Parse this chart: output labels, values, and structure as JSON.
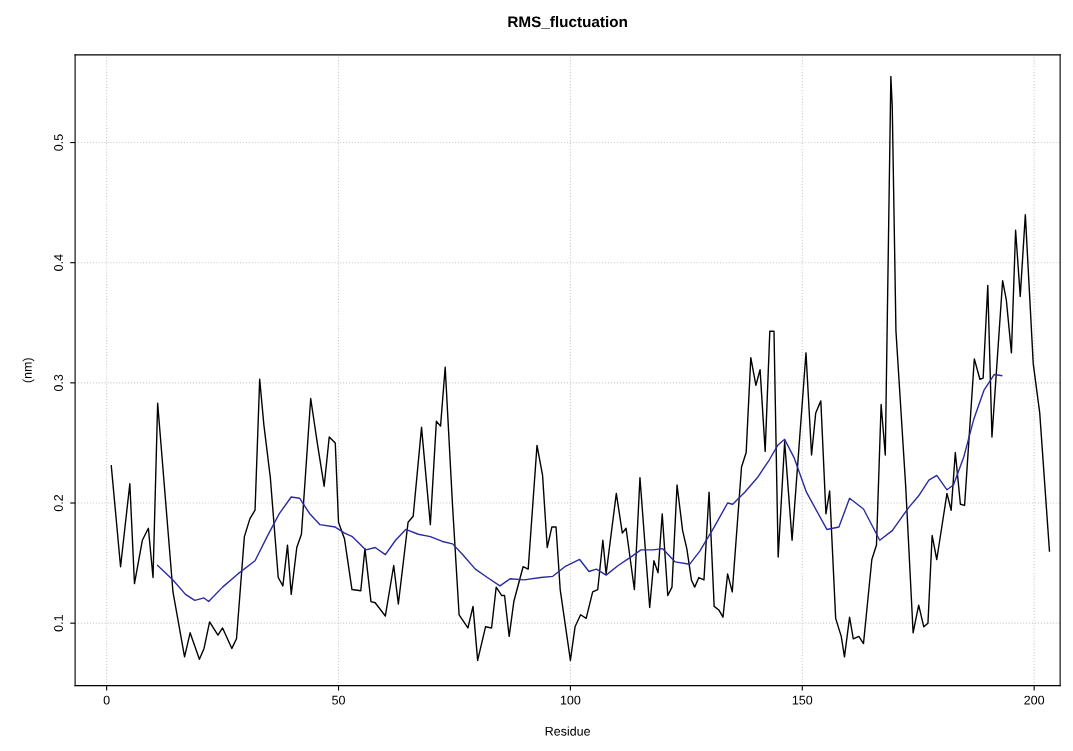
{
  "chart_data": {
    "type": "line",
    "title": "RMS_fluctuation",
    "xlabel": "Residue",
    "ylabel": "(nm)",
    "xlim": [
      -6.8,
      205.6
    ],
    "ylim": [
      0.048,
      0.573
    ],
    "xticks": [
      0,
      50,
      100,
      150,
      200
    ],
    "yticks": [
      0.1,
      0.2,
      0.3,
      0.4,
      0.5
    ],
    "grid": true,
    "line_style": "solid",
    "series": [
      {
        "color": "#000000",
        "x": [
          1,
          3,
          5,
          6,
          7.7,
          9,
          10,
          11,
          14.3,
          16.8,
          18,
          20,
          21,
          22.2,
          24,
          25,
          27,
          28,
          29.7,
          30.9,
          32,
          33,
          33.9,
          35.3,
          37,
          38,
          39,
          39.8,
          41,
          42,
          44,
          45.5,
          46.9,
          48,
          49.3,
          50,
          51.3,
          52.9,
          54.8,
          55.7,
          57,
          57.9,
          60.1,
          61.9,
          62.9,
          65,
          66.1,
          67.9,
          69.8,
          71.1,
          72,
          73,
          74.6,
          76,
          77.9,
          79,
          80,
          81.7,
          83,
          84,
          85.2,
          85.8,
          86.8,
          87.8,
          89.8,
          90.9,
          92.8,
          94,
          95,
          96,
          96.9,
          97.8,
          100,
          101,
          102.2,
          103.4,
          104.8,
          105.9,
          107,
          107.7,
          109.9,
          111.2,
          112,
          113.8,
          115,
          117.1,
          118,
          118.9,
          119.8,
          121,
          121.9,
          123,
          124.2,
          125.1,
          126.1,
          126.8,
          127.7,
          128.8,
          129.9,
          131,
          132,
          132.9,
          133.9,
          134.9,
          136.9,
          137.9,
          138.9,
          140,
          140.9,
          142,
          143,
          143.9,
          144.8,
          146.2,
          147.8,
          150.8,
          152,
          152.9,
          154,
          155.1,
          155.9,
          157.2,
          158.4,
          159.1,
          160.2,
          161,
          162.2,
          163.2,
          165,
          166,
          167,
          167.9,
          169.1,
          169.4,
          170.2,
          172.3,
          173.9,
          175.1,
          176.2,
          177.1,
          178,
          179,
          181.2,
          182.1,
          183,
          184.1,
          185,
          187.1,
          188.3,
          189,
          190,
          190.9,
          193.2,
          194,
          195.1,
          196,
          197,
          198.1,
          199.8,
          201.2,
          203.3
        ],
        "values": [
          0.231,
          0.147,
          0.216,
          0.133,
          0.169,
          0.179,
          0.138,
          0.283,
          0.126,
          0.072,
          0.092,
          0.07,
          0.079,
          0.101,
          0.09,
          0.096,
          0.079,
          0.087,
          0.172,
          0.187,
          0.194,
          0.303,
          0.265,
          0.221,
          0.138,
          0.131,
          0.165,
          0.124,
          0.163,
          0.174,
          0.287,
          0.248,
          0.214,
          0.255,
          0.25,
          0.184,
          0.17,
          0.128,
          0.127,
          0.162,
          0.118,
          0.117,
          0.106,
          0.148,
          0.116,
          0.184,
          0.189,
          0.263,
          0.182,
          0.268,
          0.264,
          0.313,
          0.197,
          0.107,
          0.096,
          0.114,
          0.069,
          0.097,
          0.096,
          0.13,
          0.123,
          0.123,
          0.089,
          0.118,
          0.147,
          0.145,
          0.248,
          0.223,
          0.163,
          0.18,
          0.18,
          0.128,
          0.069,
          0.097,
          0.107,
          0.104,
          0.126,
          0.128,
          0.169,
          0.141,
          0.208,
          0.175,
          0.179,
          0.128,
          0.221,
          0.113,
          0.152,
          0.142,
          0.191,
          0.123,
          0.13,
          0.215,
          0.177,
          0.162,
          0.136,
          0.13,
          0.138,
          0.136,
          0.209,
          0.114,
          0.111,
          0.105,
          0.141,
          0.126,
          0.23,
          0.242,
          0.321,
          0.298,
          0.311,
          0.243,
          0.343,
          0.343,
          0.155,
          0.251,
          0.169,
          0.325,
          0.24,
          0.275,
          0.285,
          0.191,
          0.21,
          0.104,
          0.089,
          0.072,
          0.105,
          0.087,
          0.089,
          0.083,
          0.153,
          0.165,
          0.282,
          0.24,
          0.555,
          0.53,
          0.343,
          0.214,
          0.092,
          0.115,
          0.097,
          0.1,
          0.173,
          0.153,
          0.208,
          0.194,
          0.242,
          0.199,
          0.198,
          0.32,
          0.303,
          0.304,
          0.381,
          0.255,
          0.385,
          0.369,
          0.325,
          0.427,
          0.372,
          0.44,
          0.316,
          0.275,
          0.16
        ]
      },
      {
        "color": "#2a2aa0",
        "x": [
          11,
          14.3,
          17,
          19,
          21,
          22,
          25,
          28.3,
          32,
          34.6,
          37.2,
          39.8,
          41.6,
          43.8,
          46,
          49.3,
          51.3,
          53,
          55.9,
          57.9,
          60.1,
          62.3,
          64.5,
          67.2,
          69.8,
          72.4,
          74.6,
          76.8,
          79.5,
          82.1,
          84.8,
          87,
          90,
          93.6,
          96.2,
          98.8,
          102,
          104,
          105.6,
          107.7,
          110.3,
          113,
          115.2,
          117.8,
          119.9,
          122.6,
          125.7,
          127.9,
          131,
          133.9,
          135,
          137.6,
          140.3,
          142.9,
          144.7,
          146.2,
          148.2,
          150.9,
          155.3,
          157.9,
          160.2,
          163.2,
          166.7,
          169.4,
          172.9,
          175.1,
          177.3,
          179,
          181.2,
          182.6,
          184.8,
          187,
          189.2,
          191.4,
          193
        ],
        "values": [
          0.148,
          0.136,
          0.124,
          0.119,
          0.121,
          0.118,
          0.13,
          0.141,
          0.152,
          0.172,
          0.191,
          0.205,
          0.204,
          0.191,
          0.182,
          0.18,
          0.175,
          0.172,
          0.161,
          0.163,
          0.157,
          0.169,
          0.178,
          0.174,
          0.172,
          0.168,
          0.166,
          0.157,
          0.145,
          0.138,
          0.131,
          0.137,
          0.136,
          0.138,
          0.139,
          0.147,
          0.153,
          0.143,
          0.145,
          0.14,
          0.148,
          0.155,
          0.161,
          0.161,
          0.162,
          0.151,
          0.149,
          0.16,
          0.18,
          0.2,
          0.199,
          0.209,
          0.221,
          0.236,
          0.248,
          0.253,
          0.238,
          0.209,
          0.178,
          0.18,
          0.204,
          0.195,
          0.169,
          0.177,
          0.196,
          0.206,
          0.219,
          0.223,
          0.211,
          0.215,
          0.238,
          0.27,
          0.294,
          0.307,
          0.306
        ]
      }
    ]
  }
}
